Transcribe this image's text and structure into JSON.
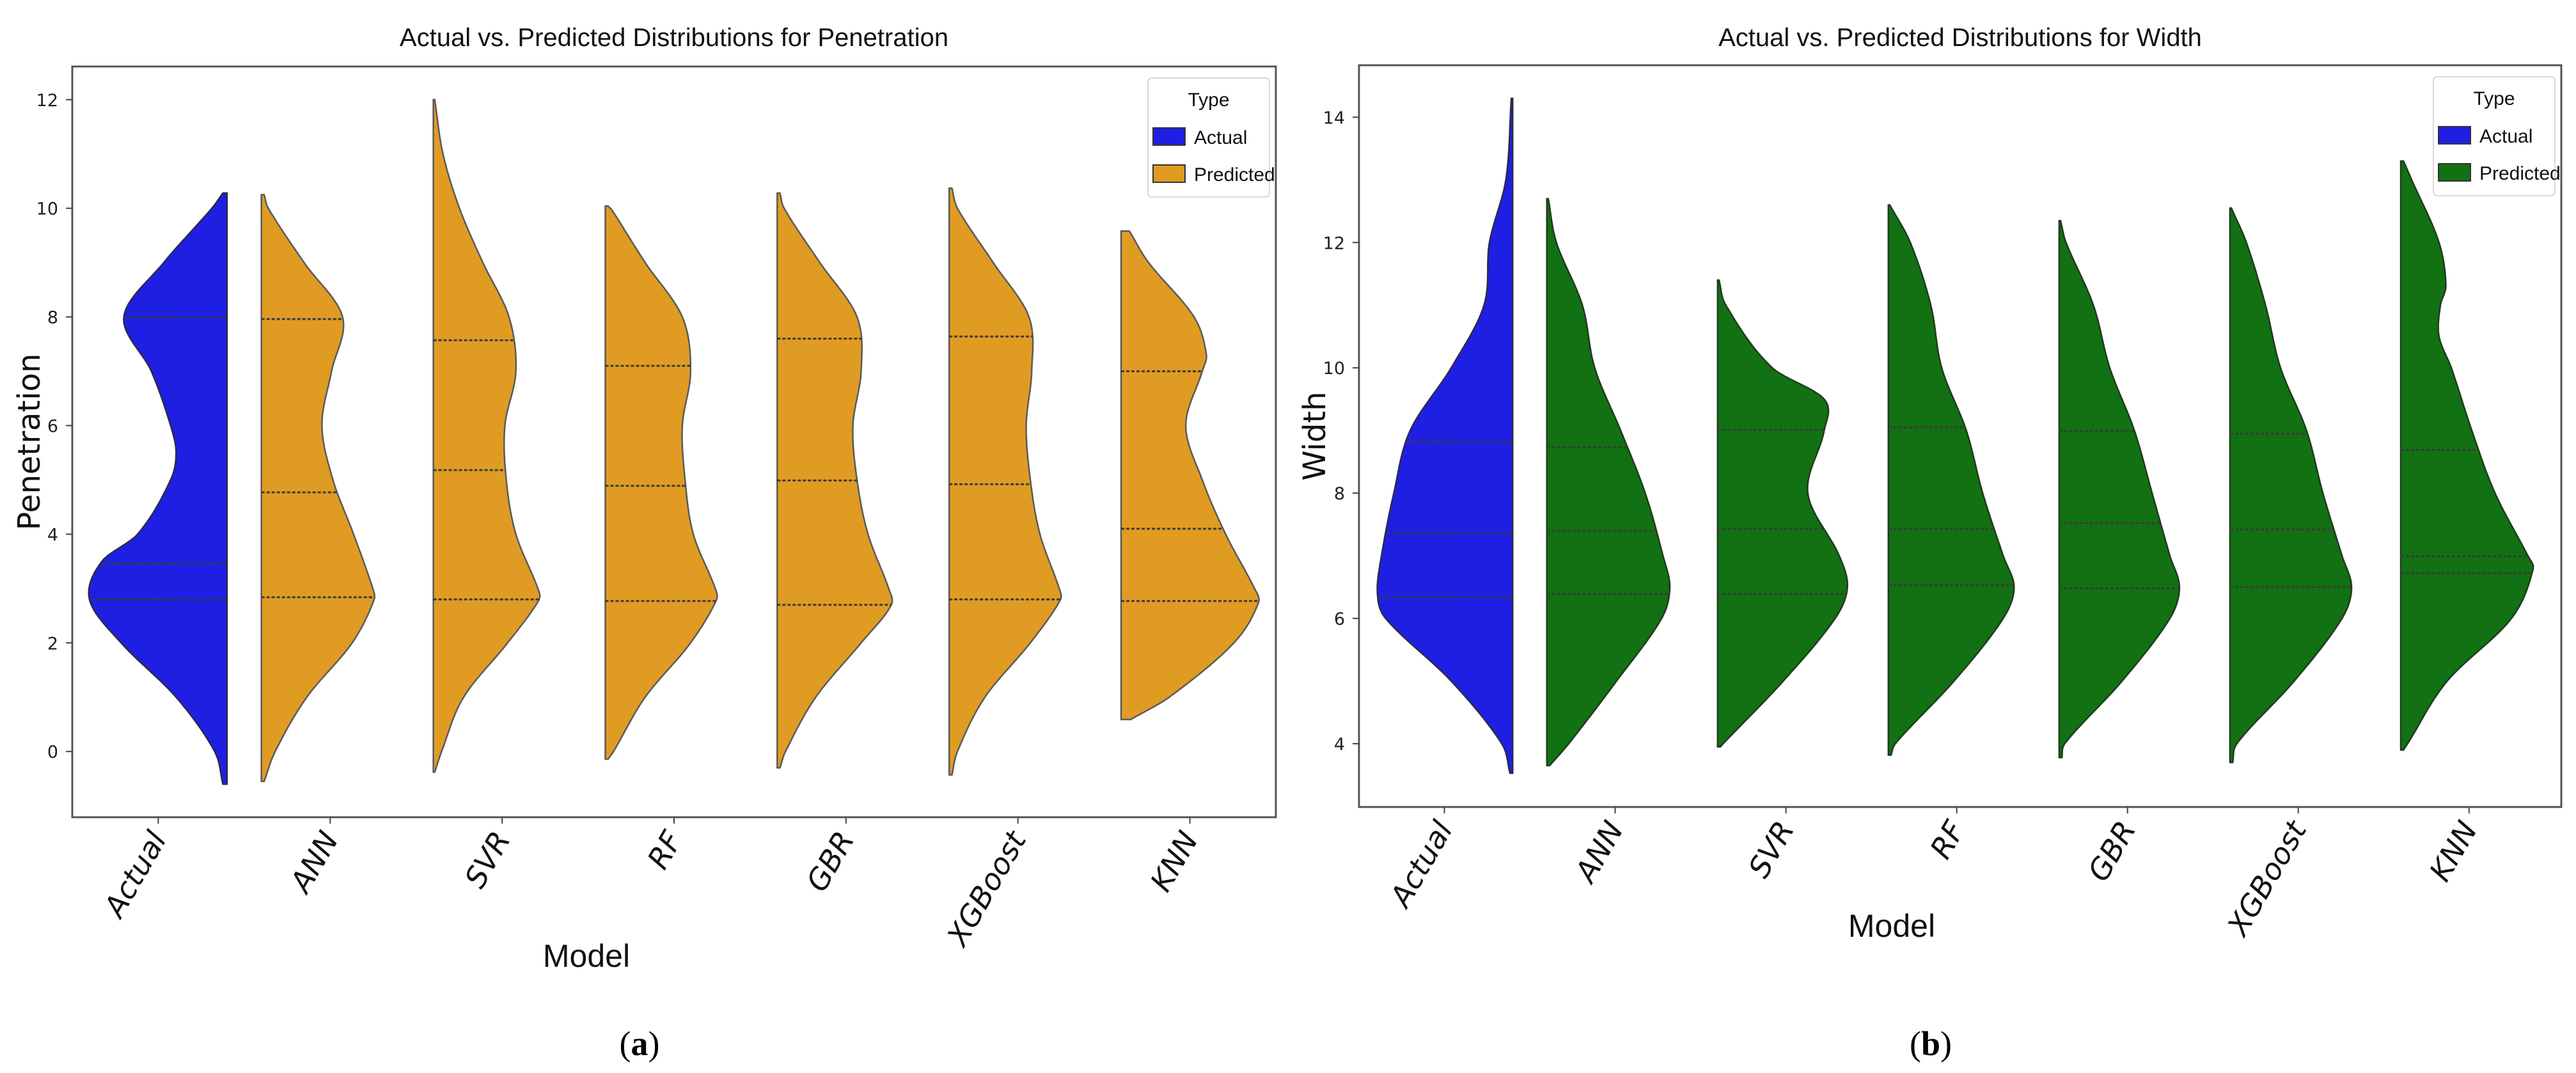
{
  "chart_data": [
    {
      "type": "violin",
      "panel_label": "a",
      "title": "Actual vs. Predicted Distributions for Penetration",
      "xlabel": "Model",
      "ylabel": "Penetration",
      "ylim": [
        -1.21,
        12.61
      ],
      "yticks": [
        "0",
        "2",
        "4",
        "6",
        "8",
        "10",
        "12"
      ],
      "xlim": [
        -0.5,
        6.5
      ],
      "categories": [
        "Actual",
        "ANN",
        "SVR",
        "RF",
        "GBR",
        "XGBoost",
        "KNN"
      ],
      "grid": false,
      "split": true,
      "inner": "quartile",
      "legend": {
        "title": "Type",
        "position": "top-right",
        "entries": [
          {
            "label": "Actual",
            "color": "#1f1fe3"
          },
          {
            "label": "Predicted",
            "color": "#e09c22"
          }
        ]
      },
      "violins": [
        {
          "category": "Actual",
          "type": "Actual",
          "min": -0.6,
          "max": 10.28,
          "quartiles": [
            2.8,
            3.46,
            8.0
          ],
          "density": [
            [
              -0.6,
              0.03
            ],
            [
              0,
              0.09
            ],
            [
              1,
              0.37
            ],
            [
              2,
              0.77
            ],
            [
              2.8,
              1.0
            ],
            [
              3.5,
              0.91
            ],
            [
              4,
              0.65
            ],
            [
              5,
              0.41
            ],
            [
              5.5,
              0.37
            ],
            [
              6,
              0.41
            ],
            [
              7,
              0.55
            ],
            [
              8,
              0.75
            ],
            [
              9,
              0.46
            ],
            [
              10,
              0.11
            ],
            [
              10.28,
              0.03
            ]
          ]
        },
        {
          "category": "ANN",
          "type": "Predicted",
          "min": -0.55,
          "max": 10.25,
          "quartiles": [
            2.84,
            4.77,
            7.96
          ],
          "density": [
            [
              -0.55,
              0.02
            ],
            [
              0,
              0.1
            ],
            [
              1,
              0.33
            ],
            [
              2,
              0.66
            ],
            [
              2.8,
              0.82
            ],
            [
              3,
              0.81
            ],
            [
              4,
              0.67
            ],
            [
              5,
              0.52
            ],
            [
              6,
              0.44
            ],
            [
              7,
              0.51
            ],
            [
              8,
              0.59
            ],
            [
              9,
              0.31
            ],
            [
              10,
              0.05
            ],
            [
              10.25,
              0.02
            ]
          ]
        },
        {
          "category": "SVR",
          "type": "Predicted",
          "min": -0.38,
          "max": 12.0,
          "quartiles": [
            2.8,
            5.18,
            7.57
          ],
          "density": [
            [
              -0.38,
              0.01
            ],
            [
              0,
              0.06
            ],
            [
              1,
              0.22
            ],
            [
              2,
              0.54
            ],
            [
              2.8,
              0.77
            ],
            [
              3,
              0.76
            ],
            [
              4,
              0.6
            ],
            [
              5,
              0.53
            ],
            [
              6,
              0.52
            ],
            [
              7,
              0.6
            ],
            [
              8,
              0.55
            ],
            [
              9,
              0.36
            ],
            [
              10,
              0.19
            ],
            [
              11,
              0.07
            ],
            [
              12,
              0.01
            ]
          ]
        },
        {
          "category": "RF",
          "type": "Predicted",
          "min": -0.14,
          "max": 10.04,
          "quartiles": [
            2.77,
            4.89,
            7.1
          ],
          "density": [
            [
              -0.14,
              0.02
            ],
            [
              0,
              0.06
            ],
            [
              1,
              0.29
            ],
            [
              2,
              0.62
            ],
            [
              2.8,
              0.81
            ],
            [
              3,
              0.8
            ],
            [
              4,
              0.64
            ],
            [
              5,
              0.58
            ],
            [
              6,
              0.56
            ],
            [
              7,
              0.62
            ],
            [
              8,
              0.56
            ],
            [
              9,
              0.29
            ],
            [
              10,
              0.04
            ],
            [
              10.04,
              0.02
            ]
          ]
        },
        {
          "category": "GBR",
          "type": "Predicted",
          "min": -0.3,
          "max": 10.28,
          "quartiles": [
            2.7,
            4.99,
            7.6
          ],
          "density": [
            [
              -0.3,
              0.02
            ],
            [
              0,
              0.06
            ],
            [
              1,
              0.28
            ],
            [
              2,
              0.61
            ],
            [
              2.7,
              0.83
            ],
            [
              3,
              0.81
            ],
            [
              4,
              0.66
            ],
            [
              5,
              0.58
            ],
            [
              6,
              0.55
            ],
            [
              7,
              0.61
            ],
            [
              8,
              0.58
            ],
            [
              9,
              0.31
            ],
            [
              10,
              0.05
            ],
            [
              10.28,
              0.02
            ]
          ]
        },
        {
          "category": "XGBoost",
          "type": "Predicted",
          "min": -0.43,
          "max": 10.37,
          "quartiles": [
            2.8,
            4.92,
            7.64
          ],
          "density": [
            [
              -0.43,
              0.02
            ],
            [
              0,
              0.06
            ],
            [
              1,
              0.26
            ],
            [
              2,
              0.59
            ],
            [
              2.8,
              0.81
            ],
            [
              3,
              0.8
            ],
            [
              4,
              0.66
            ],
            [
              5,
              0.59
            ],
            [
              6,
              0.56
            ],
            [
              7,
              0.6
            ],
            [
              8,
              0.58
            ],
            [
              9,
              0.32
            ],
            [
              10,
              0.06
            ],
            [
              10.37,
              0.02
            ]
          ]
        },
        {
          "category": "KNN",
          "type": "Predicted",
          "min": 0.59,
          "max": 9.58,
          "quartiles": [
            2.77,
            4.1,
            7.0
          ],
          "density": [
            [
              0.59,
              0.07
            ],
            [
              1,
              0.35
            ],
            [
              2,
              0.82
            ],
            [
              2.75,
              1.0
            ],
            [
              3,
              0.97
            ],
            [
              4,
              0.76
            ],
            [
              5,
              0.59
            ],
            [
              6,
              0.47
            ],
            [
              7,
              0.59
            ],
            [
              7.3,
              0.62
            ],
            [
              8,
              0.53
            ],
            [
              9,
              0.2
            ],
            [
              9.58,
              0.06
            ]
          ]
        }
      ]
    },
    {
      "type": "violin",
      "panel_label": "b",
      "title": "Actual vs. Predicted Distributions for Width",
      "xlabel": "Model",
      "ylabel": "Width",
      "ylim": [
        2.99,
        14.83
      ],
      "yticks": [
        "4",
        "6",
        "8",
        "10",
        "12",
        "14"
      ],
      "xlim": [
        -0.5,
        6.54
      ],
      "categories": [
        "Actual",
        "ANN",
        "SVR",
        "RF",
        "GBR",
        "XGBoost",
        "KNN"
      ],
      "grid": false,
      "split": true,
      "inner": "quartile",
      "legend": {
        "title": "Type",
        "position": "top-right",
        "entries": [
          {
            "label": "Actual",
            "color": "#1f1fe3"
          },
          {
            "label": "Predicted",
            "color": "#127112"
          }
        ]
      },
      "violins": [
        {
          "category": "Actual",
          "type": "Actual",
          "min": 3.53,
          "max": 14.3,
          "quartiles": [
            6.34,
            7.36,
            8.82
          ],
          "density": [
            [
              3.53,
              0.02
            ],
            [
              4,
              0.08
            ],
            [
              5,
              0.45
            ],
            [
              6,
              0.93
            ],
            [
              6.4,
              0.99
            ],
            [
              7,
              0.96
            ],
            [
              8,
              0.87
            ],
            [
              9,
              0.75
            ],
            [
              10,
              0.45
            ],
            [
              11,
              0.21
            ],
            [
              12,
              0.17
            ],
            [
              13,
              0.05
            ],
            [
              14.3,
              0.01
            ]
          ]
        },
        {
          "category": "ANN",
          "type": "Predicted",
          "min": 3.65,
          "max": 12.7,
          "quartiles": [
            6.39,
            7.4,
            8.73
          ],
          "density": [
            [
              3.65,
              0.02
            ],
            [
              4,
              0.16
            ],
            [
              5,
              0.51
            ],
            [
              6,
              0.84
            ],
            [
              6.5,
              0.9
            ],
            [
              7,
              0.85
            ],
            [
              8,
              0.72
            ],
            [
              9,
              0.54
            ],
            [
              10,
              0.35
            ],
            [
              11,
              0.26
            ],
            [
              12,
              0.07
            ],
            [
              12.7,
              0.01
            ]
          ]
        },
        {
          "category": "SVR",
          "type": "Predicted",
          "min": 3.95,
          "max": 11.4,
          "quartiles": [
            6.39,
            7.43,
            9.01
          ],
          "density": [
            [
              3.95,
              0.02
            ],
            [
              4,
              0.04
            ],
            [
              5,
              0.48
            ],
            [
              6,
              0.86
            ],
            [
              6.5,
              0.95
            ],
            [
              7,
              0.89
            ],
            [
              8,
              0.66
            ],
            [
              9,
              0.78
            ],
            [
              9.5,
              0.78
            ],
            [
              10,
              0.4
            ],
            [
              11,
              0.06
            ],
            [
              11.4,
              0.01
            ]
          ]
        },
        {
          "category": "RF",
          "type": "Predicted",
          "min": 3.82,
          "max": 12.6,
          "quartiles": [
            6.53,
            7.43,
            9.05
          ],
          "density": [
            [
              3.82,
              0.02
            ],
            [
              4,
              0.05
            ],
            [
              5,
              0.48
            ],
            [
              6,
              0.84
            ],
            [
              6.5,
              0.92
            ],
            [
              7,
              0.84
            ],
            [
              8,
              0.69
            ],
            [
              9,
              0.57
            ],
            [
              10,
              0.39
            ],
            [
              11,
              0.31
            ],
            [
              12,
              0.16
            ],
            [
              12.6,
              0.01
            ]
          ]
        },
        {
          "category": "GBR",
          "type": "Predicted",
          "min": 3.78,
          "max": 12.35,
          "quartiles": [
            6.48,
            7.52,
            8.99
          ],
          "density": [
            [
              3.78,
              0.02
            ],
            [
              4,
              0.04
            ],
            [
              5,
              0.46
            ],
            [
              6,
              0.81
            ],
            [
              6.5,
              0.88
            ],
            [
              7,
              0.81
            ],
            [
              8,
              0.68
            ],
            [
              9,
              0.55
            ],
            [
              10,
              0.37
            ],
            [
              11,
              0.25
            ],
            [
              12,
              0.05
            ],
            [
              12.35,
              0.01
            ]
          ]
        },
        {
          "category": "XGBoost",
          "type": "Predicted",
          "min": 3.7,
          "max": 12.55,
          "quartiles": [
            6.5,
            7.42,
            8.95
          ],
          "density": [
            [
              3.7,
              0.02
            ],
            [
              4,
              0.05
            ],
            [
              5,
              0.47
            ],
            [
              6,
              0.82
            ],
            [
              6.5,
              0.89
            ],
            [
              7,
              0.82
            ],
            [
              8,
              0.68
            ],
            [
              9,
              0.56
            ],
            [
              10,
              0.37
            ],
            [
              11,
              0.26
            ],
            [
              12,
              0.12
            ],
            [
              12.55,
              0.01
            ]
          ]
        },
        {
          "category": "KNN",
          "type": "Predicted",
          "min": 3.9,
          "max": 13.3,
          "quartiles": [
            6.72,
            6.99,
            8.69
          ],
          "density": [
            [
              3.9,
              0.02
            ],
            [
              4,
              0.05
            ],
            [
              5,
              0.34
            ],
            [
              6,
              0.81
            ],
            [
              6.8,
              0.97
            ],
            [
              7,
              0.93
            ],
            [
              8,
              0.69
            ],
            [
              9,
              0.52
            ],
            [
              10,
              0.37
            ],
            [
              10.5,
              0.28
            ],
            [
              11,
              0.29
            ],
            [
              11.3,
              0.33
            ],
            [
              12,
              0.28
            ],
            [
              13,
              0.08
            ],
            [
              13.3,
              0.02
            ]
          ]
        }
      ]
    }
  ]
}
